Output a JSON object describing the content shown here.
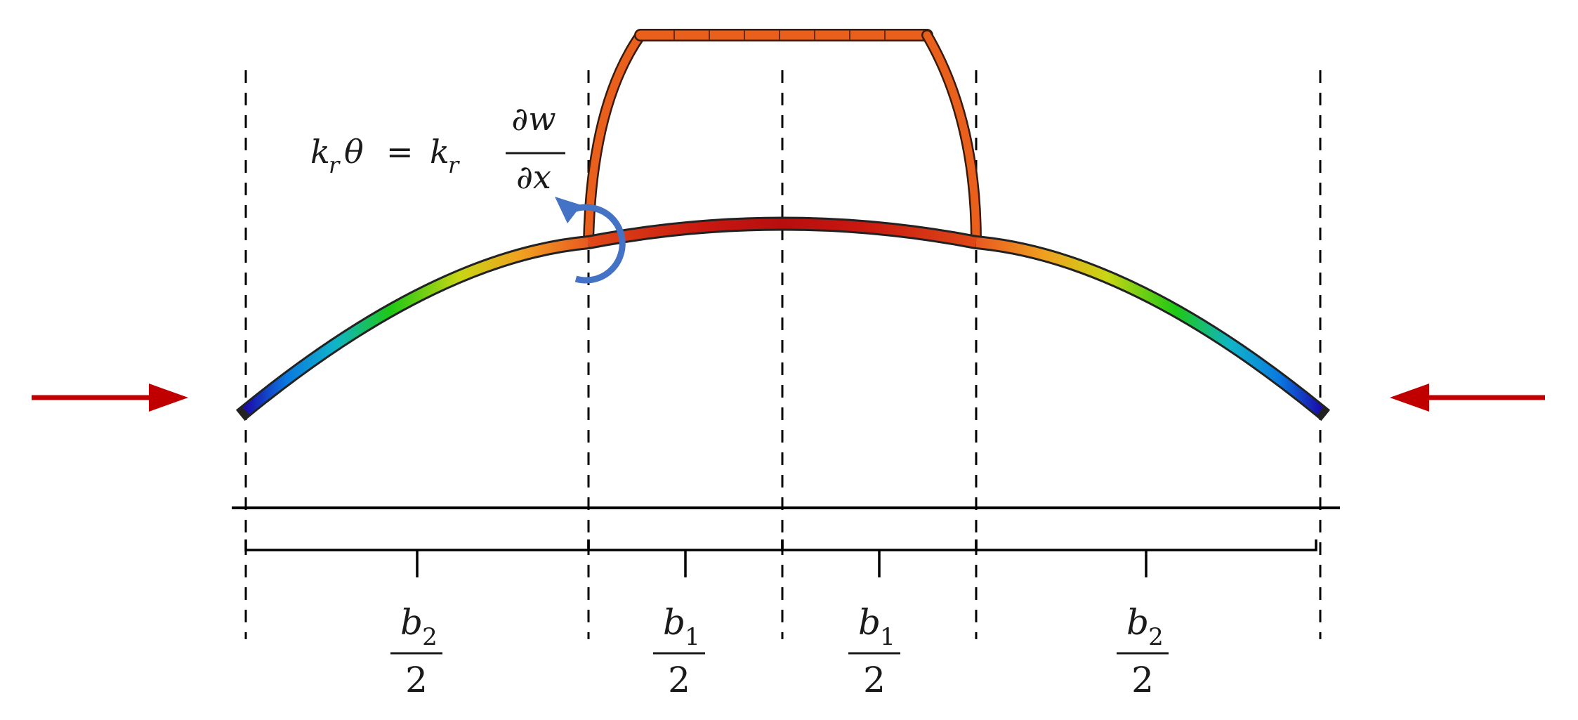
{
  "equation": {
    "k": "k",
    "r": "r",
    "theta": "θ",
    "equals": "=",
    "partial_w": "∂w",
    "partial_x": "∂x"
  },
  "dimensions": [
    {
      "id": "left_outer",
      "symbol": "b",
      "subscript": "2",
      "denominator": "2"
    },
    {
      "id": "left_inner",
      "symbol": "b",
      "subscript": "1",
      "denominator": "2"
    },
    {
      "id": "right_inner",
      "symbol": "b",
      "subscript": "1",
      "denominator": "2"
    },
    {
      "id": "right_outer",
      "symbol": "b",
      "subscript": "2",
      "denominator": "2"
    }
  ],
  "colors": {
    "load_arrow": "#c00000",
    "rotation_arrow": "#4472c4",
    "frame_top": "#e8601c",
    "beam_gradient": [
      "#1a0dab",
      "#0aa0e6",
      "#1ec814",
      "#c8d614",
      "#f0a020",
      "#e85820",
      "#c81810"
    ],
    "guide_lines": "#000000"
  },
  "icons": {
    "left_load": "arrow-right-icon",
    "right_load": "arrow-left-icon",
    "rotation": "counterclockwise-arrow-icon"
  }
}
